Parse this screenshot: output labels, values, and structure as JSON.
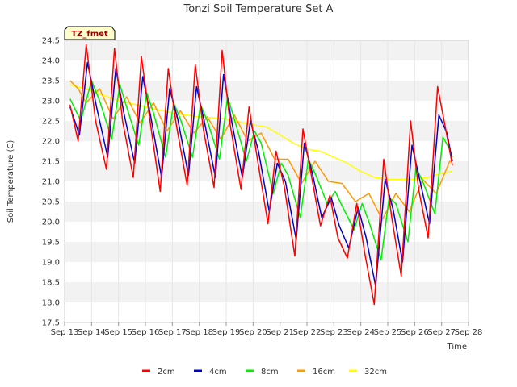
{
  "chart_data": {
    "type": "line",
    "title": "Tonzi Soil Temperature Set A",
    "xlabel": "Time",
    "ylabel": "Soil Temperature (C)",
    "tag": "TZ_fmet",
    "ylim": [
      17.5,
      24.5
    ],
    "xlim": [
      "Sep 13",
      "Sep 28"
    ],
    "yticks": [
      "17.5",
      "18.0",
      "18.5",
      "19.0",
      "19.5",
      "20.0",
      "20.5",
      "21.0",
      "21.5",
      "22.0",
      "22.5",
      "23.0",
      "23.5",
      "24.0",
      "24.5"
    ],
    "xticks": [
      "Sep 13",
      "Sep 14",
      "Sep 15",
      "Sep 16",
      "Sep 17",
      "Sep 18",
      "Sep 19",
      "Sep 20",
      "Sep 21",
      "Sep 22",
      "Sep 23",
      "Sep 24",
      "Sep 25",
      "Sep 26",
      "Sep 27",
      "Sep 28"
    ],
    "grid": "horizontal alternating bands",
    "legend_position": "bottom",
    "series": [
      {
        "name": "2cm",
        "color": "#ff0000",
        "x": [
          "Sep 13.2",
          "Sep 13.5",
          "Sep 13.8",
          "Sep 14.15",
          "Sep 14.55",
          "Sep 14.85",
          "Sep 15.15",
          "Sep 15.55",
          "Sep 15.85",
          "Sep 16.15",
          "Sep 16.55",
          "Sep 16.85",
          "Sep 17.15",
          "Sep 17.55",
          "Sep 17.85",
          "Sep 18.15",
          "Sep 18.55",
          "Sep 18.85",
          "Sep 19.15",
          "Sep 19.55",
          "Sep 19.85",
          "Sep 20.15",
          "Sep 20.55",
          "Sep 20.85",
          "Sep 21.15",
          "Sep 21.55",
          "Sep 21.85",
          "Sep 22.15",
          "Sep 22.5",
          "Sep 22.85",
          "Sep 23.15",
          "Sep 23.5",
          "Sep 23.85",
          "Sep 24.15",
          "Sep 24.5",
          "Sep 24.85",
          "Sep 25.15",
          "Sep 25.5",
          "Sep 25.85",
          "Sep 26.15",
          "Sep 26.5",
          "Sep 26.85",
          "Sep 27.15",
          "Sep 27.4"
        ],
        "y": [
          22.9,
          22.0,
          24.4,
          22.5,
          21.3,
          24.3,
          22.5,
          21.1,
          24.1,
          22.6,
          20.75,
          23.8,
          22.4,
          20.9,
          23.9,
          22.3,
          20.85,
          24.25,
          22.4,
          20.8,
          22.85,
          21.6,
          19.95,
          21.75,
          20.9,
          19.15,
          22.3,
          21.2,
          19.9,
          20.65,
          19.6,
          19.1,
          20.45,
          19.2,
          17.95,
          21.55,
          20.1,
          18.65,
          22.5,
          20.8,
          19.6,
          23.35,
          22.3,
          21.4
        ]
      },
      {
        "name": "4cm",
        "color": "#0000cc",
        "x": [
          "Sep 13.2",
          "Sep 13.55",
          "Sep 13.85",
          "Sep 14.2",
          "Sep 14.6",
          "Sep 14.9",
          "Sep 15.2",
          "Sep 15.6",
          "Sep 15.9",
          "Sep 16.2",
          "Sep 16.6",
          "Sep 16.9",
          "Sep 17.2",
          "Sep 17.6",
          "Sep 17.9",
          "Sep 18.2",
          "Sep 18.6",
          "Sep 18.9",
          "Sep 19.2",
          "Sep 19.6",
          "Sep 19.9",
          "Sep 20.2",
          "Sep 20.6",
          "Sep 20.9",
          "Sep 21.2",
          "Sep 21.6",
          "Sep 21.9",
          "Sep 22.2",
          "Sep 22.55",
          "Sep 22.9",
          "Sep 23.2",
          "Sep 23.55",
          "Sep 23.9",
          "Sep 24.2",
          "Sep 24.55",
          "Sep 24.9",
          "Sep 25.2",
          "Sep 25.55",
          "Sep 25.9",
          "Sep 26.2",
          "Sep 26.55",
          "Sep 26.9",
          "Sep 27.2",
          "Sep 27.4"
        ],
        "y": [
          22.85,
          22.15,
          23.95,
          22.8,
          21.6,
          23.8,
          22.7,
          21.45,
          23.6,
          22.6,
          21.1,
          23.3,
          22.55,
          21.15,
          23.35,
          22.45,
          21.1,
          23.65,
          22.5,
          21.1,
          22.5,
          21.75,
          20.25,
          21.45,
          21.0,
          19.55,
          21.95,
          21.2,
          20.1,
          20.6,
          19.9,
          19.35,
          20.35,
          19.6,
          18.4,
          21.05,
          20.3,
          19.0,
          21.9,
          21.0,
          19.95,
          22.65,
          22.2,
          21.5
        ]
      },
      {
        "name": "8cm",
        "color": "#00ee00",
        "x": [
          "Sep 13.2",
          "Sep 13.6",
          "Sep 14.0",
          "Sep 14.3",
          "Sep 14.75",
          "Sep 15.05",
          "Sep 15.3",
          "Sep 15.75",
          "Sep 16.05",
          "Sep 16.3",
          "Sep 16.75",
          "Sep 17.05",
          "Sep 17.3",
          "Sep 17.75",
          "Sep 18.05",
          "Sep 18.3",
          "Sep 18.75",
          "Sep 19.05",
          "Sep 19.3",
          "Sep 19.75",
          "Sep 20.05",
          "Sep 20.3",
          "Sep 20.75",
          "Sep 21.05",
          "Sep 21.3",
          "Sep 21.75",
          "Sep 22.05",
          "Sep 22.3",
          "Sep 22.75",
          "Sep 23.05",
          "Sep 23.3",
          "Sep 23.75",
          "Sep 24.05",
          "Sep 24.3",
          "Sep 24.75",
          "Sep 25.05",
          "Sep 25.3",
          "Sep 25.75",
          "Sep 26.05",
          "Sep 26.3",
          "Sep 26.75",
          "Sep 27.05",
          "Sep 27.3",
          "Sep 27.4"
        ],
        "y": [
          23.05,
          22.5,
          23.5,
          23.0,
          22.05,
          23.4,
          22.85,
          21.9,
          23.2,
          22.7,
          21.6,
          22.95,
          22.55,
          21.6,
          22.9,
          22.5,
          21.55,
          23.1,
          22.55,
          21.5,
          22.25,
          21.95,
          20.7,
          21.45,
          21.15,
          20.1,
          21.55,
          21.2,
          20.45,
          20.75,
          20.4,
          19.8,
          20.45,
          20.0,
          19.05,
          20.6,
          20.45,
          19.5,
          21.35,
          21.0,
          20.2,
          22.1,
          21.8,
          21.6
        ]
      },
      {
        "name": "16cm",
        "color": "#ff9900",
        "x": [
          "Sep 13.2",
          "Sep 13.5",
          "Sep 13.8",
          "Sep 14.3",
          "Sep 14.8",
          "Sep 15.3",
          "Sep 15.8",
          "Sep 16.3",
          "Sep 16.8",
          "Sep 17.3",
          "Sep 17.8",
          "Sep 18.3",
          "Sep 18.8",
          "Sep 19.3",
          "Sep 19.8",
          "Sep 20.3",
          "Sep 20.8",
          "Sep 21.3",
          "Sep 21.8",
          "Sep 22.3",
          "Sep 22.8",
          "Sep 23.3",
          "Sep 23.8",
          "Sep 24.3",
          "Sep 24.8",
          "Sep 25.3",
          "Sep 25.8",
          "Sep 26.3",
          "Sep 26.8",
          "Sep 27.3",
          "Sep 27.4"
        ],
        "y": [
          23.5,
          23.3,
          22.95,
          23.3,
          22.55,
          23.1,
          22.45,
          22.95,
          22.25,
          22.75,
          22.2,
          22.6,
          22.05,
          22.65,
          22.0,
          22.2,
          21.55,
          21.55,
          20.95,
          21.5,
          21.0,
          20.95,
          20.5,
          20.7,
          20.05,
          20.7,
          20.25,
          21.05,
          20.7,
          21.5,
          21.5
        ]
      },
      {
        "name": "32cm",
        "color": "#ffff00",
        "x": [
          "Sep 13.2",
          "Sep 14.0",
          "Sep 15.0",
          "Sep 16.0",
          "Sep 17.0",
          "Sep 18.0",
          "Sep 19.0",
          "Sep 20.0",
          "Sep 20.5",
          "Sep 21.0",
          "Sep 21.5",
          "Sep 22.0",
          "Sep 22.5",
          "Sep 23.0",
          "Sep 23.5",
          "Sep 24.0",
          "Sep 24.5",
          "Sep 25.0",
          "Sep 25.5",
          "Sep 26.0",
          "Sep 26.5",
          "Sep 27.0",
          "Sep 27.4"
        ],
        "y": [
          23.4,
          23.25,
          23.0,
          22.85,
          22.7,
          22.6,
          22.55,
          22.4,
          22.35,
          22.15,
          21.95,
          21.8,
          21.75,
          21.6,
          21.45,
          21.25,
          21.1,
          21.05,
          21.05,
          21.05,
          21.1,
          21.2,
          21.25
        ]
      }
    ]
  }
}
